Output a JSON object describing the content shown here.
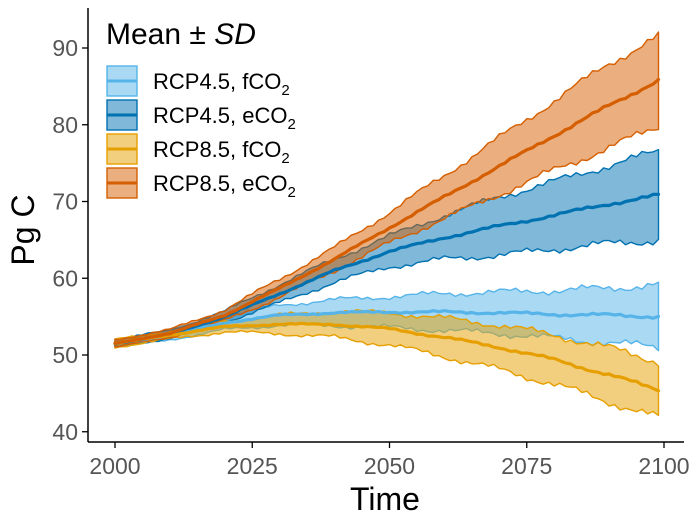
{
  "chart_data": {
    "type": "area",
    "title": "",
    "xlabel": "Time",
    "ylabel": "Pg C",
    "xlim": [
      2000,
      2100
    ],
    "ylim": [
      40,
      93
    ],
    "xticks": [
      2000,
      2025,
      2050,
      2075,
      2100
    ],
    "yticks": [
      40,
      50,
      60,
      70,
      80,
      90
    ],
    "grid": false,
    "legend": {
      "position": "top-left",
      "title_prefix": "Mean ± ",
      "title_emph": "SD"
    },
    "x": [
      2000,
      2010,
      2020,
      2030,
      2040,
      2050,
      2060,
      2070,
      2080,
      2090,
      2099
    ],
    "series": [
      {
        "label_main": "RCP4.5, fCO",
        "label_sub": "2",
        "line_color": "#56b4e9",
        "fill_color": "#56b4e9",
        "mean": [
          51.5,
          52.6,
          54.2,
          55.2,
          55.5,
          55.6,
          55.6,
          55.5,
          55.3,
          55.2,
          55.0
        ],
        "lower": [
          51.0,
          52.0,
          53.3,
          53.9,
          53.8,
          53.6,
          53.2,
          52.8,
          52.2,
          51.6,
          51.0
        ],
        "upper": [
          52.0,
          53.2,
          55.1,
          56.5,
          57.2,
          57.6,
          58.0,
          58.2,
          58.4,
          58.7,
          59.2
        ]
      },
      {
        "label_main": "RCP4.5, eCO",
        "label_sub": "2",
        "line_color": "#0072b2",
        "fill_color": "#0072b2",
        "mean": [
          51.5,
          52.7,
          55.0,
          58.0,
          61.0,
          63.5,
          65.3,
          66.8,
          68.2,
          69.7,
          70.8
        ],
        "lower": [
          51.0,
          52.2,
          54.3,
          56.8,
          59.5,
          61.5,
          62.5,
          63.0,
          63.8,
          64.5,
          65.0
        ],
        "upper": [
          52.0,
          53.2,
          55.7,
          59.2,
          62.5,
          65.5,
          68.2,
          70.6,
          72.6,
          74.7,
          76.5
        ]
      },
      {
        "label_main": "RCP8.5, fCO",
        "label_sub": "2",
        "line_color": "#e69f00",
        "fill_color": "#e69f00",
        "mean": [
          51.5,
          52.6,
          53.7,
          54.0,
          54.0,
          53.4,
          52.3,
          51.0,
          49.4,
          47.4,
          45.5
        ],
        "lower": [
          51.0,
          52.1,
          53.0,
          52.8,
          52.3,
          51.3,
          49.8,
          48.1,
          46.2,
          43.9,
          41.8
        ],
        "upper": [
          52.0,
          53.1,
          54.4,
          55.2,
          55.7,
          55.5,
          54.8,
          53.9,
          52.6,
          50.9,
          49.2
        ]
      },
      {
        "label_main": "RCP8.5, eCO",
        "label_sub": "2",
        "line_color": "#d55e00",
        "fill_color": "#d55e00",
        "mean": [
          51.5,
          52.8,
          55.2,
          58.7,
          62.5,
          66.6,
          70.6,
          74.6,
          78.6,
          82.5,
          85.8
        ],
        "lower": [
          51.0,
          52.3,
          54.5,
          57.5,
          61.0,
          64.6,
          67.8,
          70.9,
          74.1,
          77.0,
          79.8
        ],
        "upper": [
          52.0,
          53.3,
          55.9,
          59.9,
          64.0,
          68.6,
          73.4,
          78.3,
          83.1,
          88.0,
          91.5
        ]
      }
    ]
  }
}
